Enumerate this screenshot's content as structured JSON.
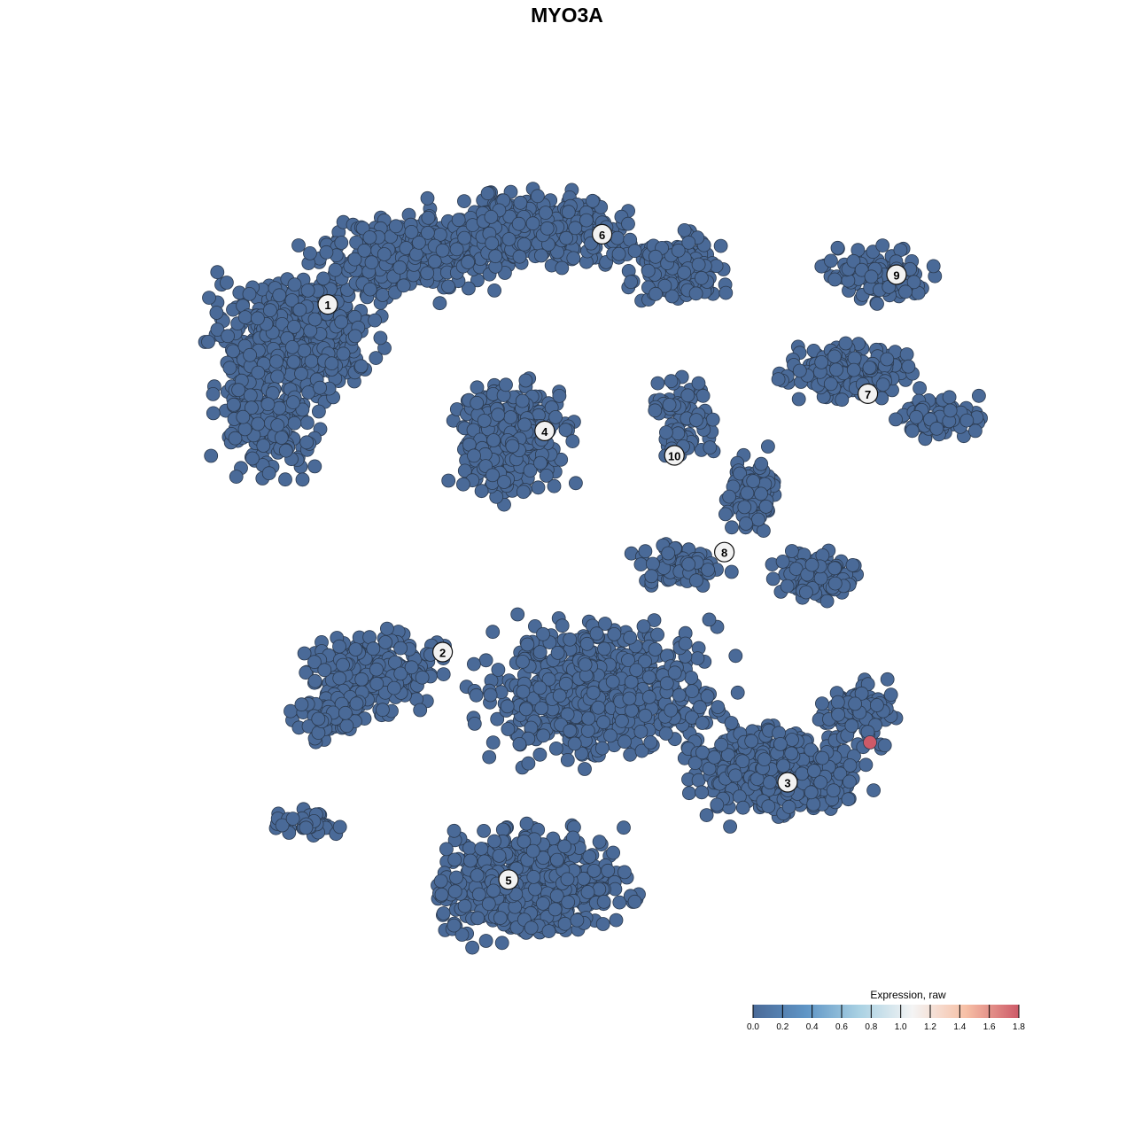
{
  "chart_data": {
    "type": "scatter",
    "title": "MYO3A",
    "xlabel": "",
    "ylabel": "",
    "axes_visible": false,
    "grid": false,
    "xlim": [
      -40,
      40
    ],
    "ylim": [
      -40,
      40
    ],
    "default_point_expression": 0.0,
    "highlighted_points": [
      {
        "x": 28.5,
        "y": -16.5,
        "expression": 1.8
      }
    ],
    "cluster_labels": [
      {
        "label": "1",
        "x": -22.5,
        "y": 24.7
      },
      {
        "label": "2",
        "x": -11.7,
        "y": -8.0
      },
      {
        "label": "3",
        "x": 20.75,
        "y": -20.25
      },
      {
        "label": "4",
        "x": -2.1,
        "y": 12.8
      },
      {
        "label": "5",
        "x": -5.5,
        "y": -29.4
      },
      {
        "label": "6",
        "x": 3.3,
        "y": 31.3
      },
      {
        "label": "7",
        "x": 28.3,
        "y": 16.3
      },
      {
        "label": "8",
        "x": 14.8,
        "y": 1.4
      },
      {
        "label": "9",
        "x": 31.0,
        "y": 27.5
      },
      {
        "label": "10",
        "x": 10.1,
        "y": 10.5
      }
    ],
    "colorbar": {
      "title": "Expression, raw",
      "range": [
        0.0,
        1.8
      ],
      "ticks": [
        "0.0",
        "0.2",
        "0.4",
        "0.6",
        "0.8",
        "1.0",
        "1.2",
        "1.4",
        "1.6",
        "1.8"
      ],
      "colors": [
        "#4a6a98",
        "#5f95c6",
        "#a9d1e3",
        "#f4f4f4",
        "#f7c0a6",
        "#cd5a68"
      ],
      "legend_position": "bottom-right"
    }
  }
}
